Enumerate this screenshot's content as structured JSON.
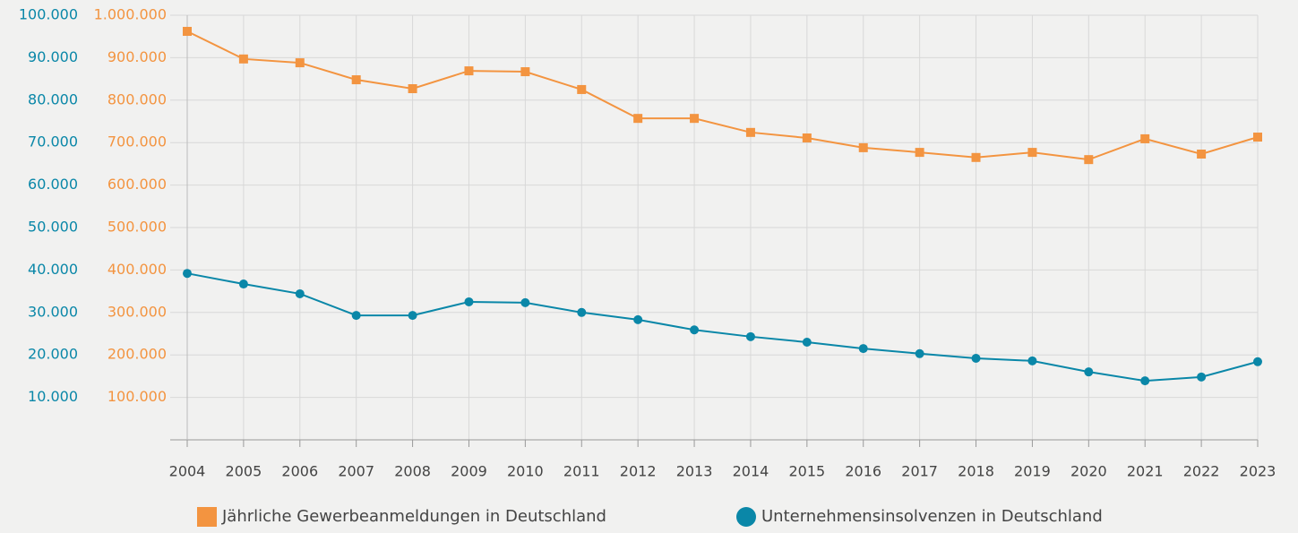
{
  "chart_data": {
    "type": "line",
    "categories": [
      "2004",
      "2005",
      "2006",
      "2007",
      "2008",
      "2009",
      "2010",
      "2011",
      "2012",
      "2013",
      "2014",
      "2015",
      "2016",
      "2017",
      "2018",
      "2019",
      "2020",
      "2021",
      "2022",
      "2023"
    ],
    "series": [
      {
        "name": "Jährliche Gewerbeanmeldungen in Deutschland",
        "color": "#f39440",
        "marker": "square",
        "values": [
          962000,
          897000,
          888000,
          848000,
          827000,
          869000,
          867000,
          825000,
          757000,
          757000,
          724000,
          711000,
          688000,
          677000,
          665000,
          677000,
          660000,
          709000,
          673000,
          713000
        ]
      },
      {
        "name": "Unternehmensinsolvenzen in Deutschland",
        "color": "#0a87a8",
        "marker": "circle",
        "axis": "y2",
        "values": [
          39200,
          36700,
          34400,
          29300,
          29300,
          32500,
          32300,
          30000,
          28300,
          25900,
          24300,
          23000,
          21500,
          20300,
          19200,
          18600,
          16000,
          13900,
          14800,
          18400
        ]
      }
    ],
    "ylim": [
      0,
      1000000
    ],
    "yticks": [
      {
        "value": 100000,
        "label": "100.000"
      },
      {
        "value": 200000,
        "label": "200.000"
      },
      {
        "value": 300000,
        "label": "300.000"
      },
      {
        "value": 400000,
        "label": "400.000"
      },
      {
        "value": 500000,
        "label": "500.000"
      },
      {
        "value": 600000,
        "label": "600.000"
      },
      {
        "value": 700000,
        "label": "700.000"
      },
      {
        "value": 800000,
        "label": "800.000"
      },
      {
        "value": 900000,
        "label": "900.000"
      },
      {
        "value": 1000000,
        "label": "1.000.000"
      }
    ],
    "y2lim": [
      0,
      100000
    ],
    "y2ticks": [
      {
        "value": 10000,
        "label": "10.000"
      },
      {
        "value": 20000,
        "label": "20.000"
      },
      {
        "value": 30000,
        "label": "30.000"
      },
      {
        "value": 40000,
        "label": "40.000"
      },
      {
        "value": 50000,
        "label": "50.000"
      },
      {
        "value": 60000,
        "label": "60.000"
      },
      {
        "value": 70000,
        "label": "70.000"
      },
      {
        "value": 80000,
        "label": "80.000"
      },
      {
        "value": 90000,
        "label": "90.000"
      },
      {
        "value": 100000,
        "label": "100.000"
      }
    ],
    "grid": true,
    "legend": "bottom"
  }
}
